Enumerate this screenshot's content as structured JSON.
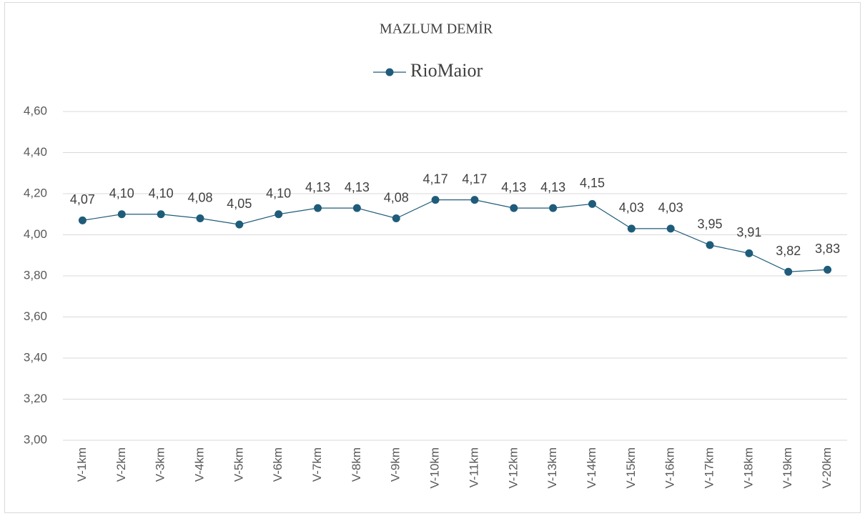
{
  "chart_data": {
    "type": "line",
    "title": "MAZLUM  DEMİR",
    "categories": [
      "V-1km",
      "V-2km",
      "V-3km",
      "V-4km",
      "V-5km",
      "V-6km",
      "V-7km",
      "V-8km",
      "V-9km",
      "V-10km",
      "V-11km",
      "V-12km",
      "V-13km",
      "V-14km",
      "V-15km",
      "V-16km",
      "V-17km",
      "V-18km",
      "V-19km",
      "V-20km"
    ],
    "series": [
      {
        "name": "RioMaior",
        "color": "#1f5c7a",
        "values": [
          4.07,
          4.1,
          4.1,
          4.08,
          4.05,
          4.1,
          4.13,
          4.13,
          4.08,
          4.17,
          4.17,
          4.13,
          4.13,
          4.15,
          4.03,
          4.03,
          3.95,
          3.91,
          3.82,
          3.83
        ],
        "value_labels": [
          "4,07",
          "4,10",
          "4,10",
          "4,08",
          "4,05",
          "4,10",
          "4,13",
          "4,13",
          "4,08",
          "4,17",
          "4,17",
          "4,13",
          "4,13",
          "4,15",
          "4,03",
          "4,03",
          "3,95",
          "3,91",
          "3,82",
          "3,83"
        ]
      }
    ],
    "ylim": [
      3.0,
      4.6
    ],
    "yticks": [
      {
        "value": 3.0,
        "label": "3,00"
      },
      {
        "value": 3.2,
        "label": "3,20"
      },
      {
        "value": 3.4,
        "label": "3,40"
      },
      {
        "value": 3.6,
        "label": "3,60"
      },
      {
        "value": 3.8,
        "label": "3,80"
      },
      {
        "value": 4.0,
        "label": "4,00"
      },
      {
        "value": 4.2,
        "label": "4,20"
      },
      {
        "value": 4.4,
        "label": "4,40"
      },
      {
        "value": 4.6,
        "label": "4,60"
      }
    ],
    "grid": true,
    "legend": "top"
  }
}
